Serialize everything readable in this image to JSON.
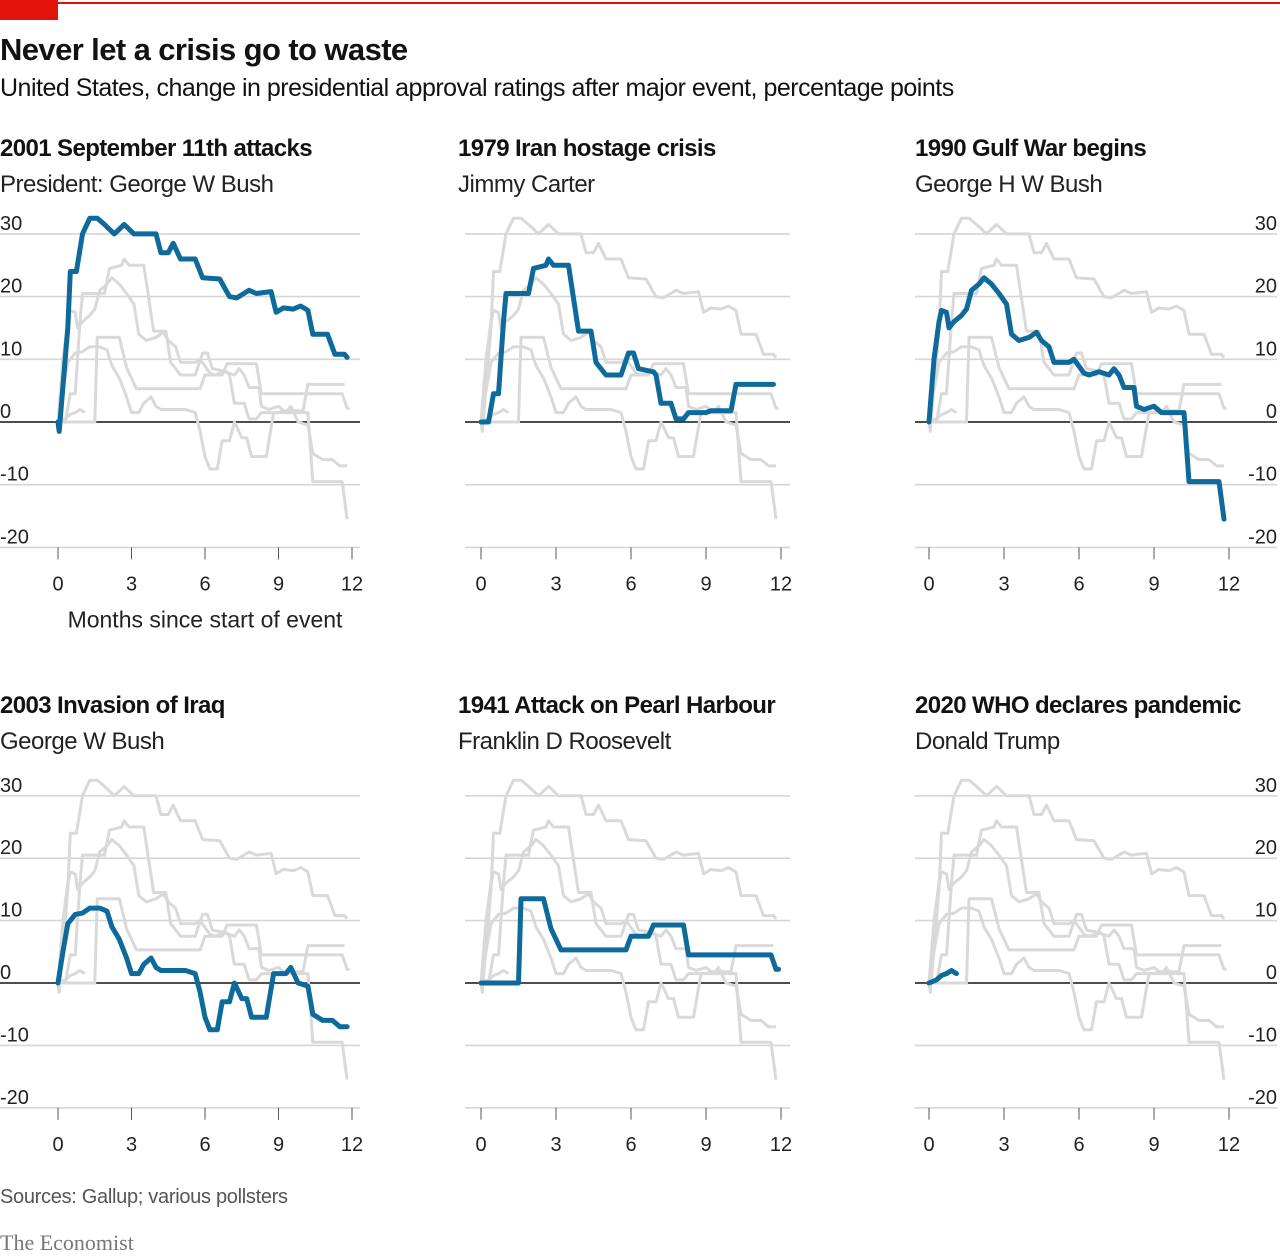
{
  "header": {
    "title": "Never let a crisis go to waste",
    "subtitle": "United States, change in presidential approval ratings after major event, percentage points"
  },
  "footer": {
    "source": "Sources: Gallup; various pollsters",
    "logo": "The Economist"
  },
  "colors": {
    "highlight": "#0e6a9a",
    "context": "#d9d9d9",
    "grid": "#d6d6d6",
    "zero": "#121212",
    "brand": "#e3120b"
  },
  "chart_data": {
    "type": "line",
    "xlabel": "Months since start of event",
    "ylabel": "percentage points",
    "xlim": [
      0,
      12
    ],
    "ylim": [
      -20,
      30
    ],
    "xticks": [
      0,
      3,
      6,
      9,
      12
    ],
    "yticks": [
      30,
      20,
      10,
      0,
      -10,
      -20
    ],
    "grid": true,
    "panels": [
      {
        "title": "2001 September 11th attacks",
        "president": "President: George W Bush",
        "highlight": 0
      },
      {
        "title": "1979 Iran hostage crisis",
        "president": "Jimmy Carter",
        "highlight": 1
      },
      {
        "title": "1990 Gulf War begins",
        "president": "George H W Bush",
        "highlight": 2
      },
      {
        "title": "2003 Invasion of Iraq",
        "president": "George W Bush",
        "highlight": 3
      },
      {
        "title": "1941 Attack on Pearl Harbour",
        "president": "Franklin D Roosevelt",
        "highlight": 4
      },
      {
        "title": "2020 WHO declares pandemic",
        "president": "Donald Trump",
        "highlight": 5
      }
    ],
    "series": [
      {
        "name": "2001 September 11th attacks",
        "x": [
          0,
          0.05,
          0.4,
          0.5,
          0.75,
          1,
          1.3,
          1.6,
          1.9,
          2.3,
          2.7,
          3.1,
          3.5,
          4,
          4.2,
          4.5,
          4.7,
          5,
          5.6,
          5.9,
          6.6,
          7,
          7.3,
          7.8,
          8.1,
          8.7,
          8.9,
          9.2,
          9.6,
          9.9,
          10.2,
          10.4,
          11,
          11.3,
          11.7,
          11.8
        ],
        "y": [
          0,
          -1.5,
          15,
          24,
          24,
          30,
          32.5,
          32.5,
          31.5,
          30,
          31.5,
          30,
          30,
          30,
          27,
          27,
          28.5,
          26,
          26,
          23,
          22.8,
          20,
          19.8,
          21,
          20.5,
          20.8,
          17.5,
          18.2,
          18,
          18.5,
          17.8,
          14,
          14,
          10.8,
          10.8,
          10.3
        ]
      },
      {
        "name": "1979 Iran hostage crisis",
        "x": [
          0,
          0.3,
          0.5,
          0.7,
          0.9,
          1,
          1.9,
          2.1,
          2.6,
          2.7,
          2.9,
          3.5,
          3.9,
          4.4,
          4.6,
          5,
          5.6,
          5.9,
          6.1,
          6.3,
          6.9,
          7,
          7.2,
          7.6,
          7.8,
          8.1,
          8.3,
          9,
          9.2,
          10,
          10.2,
          11.7
        ],
        "y": [
          0,
          0,
          4.5,
          4.5,
          16,
          20.5,
          20.5,
          24.5,
          25,
          26,
          25,
          25,
          14.5,
          14.5,
          9.5,
          7.5,
          7.5,
          11,
          11,
          8.5,
          8,
          7.5,
          3,
          3,
          0.5,
          0.5,
          1.5,
          1.5,
          1.8,
          1.8,
          6,
          6
        ]
      },
      {
        "name": "1990 Gulf War begins",
        "x": [
          0,
          0.2,
          0.4,
          0.5,
          0.7,
          0.8,
          1,
          1.3,
          1.5,
          1.7,
          2,
          2.2,
          2.5,
          2.8,
          3.1,
          3.3,
          3.6,
          4,
          4.3,
          4.5,
          4.8,
          5,
          5.6,
          5.8,
          6.2,
          6.4,
          6.8,
          7.2,
          7.4,
          7.6,
          7.8,
          8.2,
          8.3,
          8.6,
          9,
          9.3,
          10.2,
          10.4,
          11.6,
          11.8
        ],
        "y": [
          0,
          10,
          16,
          17.8,
          17.5,
          15,
          16,
          17,
          18,
          21,
          22,
          23,
          22,
          20.5,
          18.8,
          14,
          13,
          13.5,
          14.3,
          13,
          12,
          9.5,
          9.5,
          10,
          7.8,
          7.5,
          8,
          7.5,
          8.5,
          7.5,
          5.5,
          5.5,
          2.5,
          2,
          2.5,
          1.5,
          1.5,
          -9.5,
          -9.5,
          -15.5
        ]
      },
      {
        "name": "2003 Invasion of Iraq",
        "x": [
          0,
          0.2,
          0.4,
          0.7,
          1,
          1.3,
          1.7,
          2,
          2.2,
          2.5,
          2.8,
          3,
          3.3,
          3.5,
          3.8,
          4,
          4.2,
          5.2,
          5.6,
          5.8,
          6,
          6.2,
          6.5,
          6.7,
          7,
          7.2,
          7.5,
          7.7,
          7.9,
          8.5,
          8.8,
          9.3,
          9.5,
          9.8,
          10.2,
          10.4,
          10.8,
          11.2,
          11.5,
          11.8
        ],
        "y": [
          0,
          5,
          9.5,
          11,
          11.2,
          12,
          12,
          11.5,
          9,
          7,
          4,
          1.5,
          1.5,
          3,
          4,
          2.5,
          2,
          2,
          1.5,
          -1.5,
          -5.5,
          -7.5,
          -7.5,
          -3,
          -3,
          0,
          -2.5,
          -2.5,
          -5.5,
          -5.5,
          1.5,
          1.5,
          2.5,
          0,
          -0.5,
          -5,
          -6,
          -6,
          -7,
          -7
        ]
      },
      {
        "name": "1941 Attack on Pearl Harbour",
        "x": [
          0,
          1.5,
          1.6,
          2.5,
          2.8,
          3.2,
          5.8,
          6,
          6.7,
          6.9,
          8.1,
          8.3,
          11.6,
          11.8,
          11.9
        ],
        "y": [
          0,
          0,
          13.5,
          13.5,
          8.7,
          5.3,
          5.3,
          7.5,
          7.5,
          9.3,
          9.3,
          4.5,
          4.5,
          2.2,
          2.2
        ]
      },
      {
        "name": "2020 WHO declares pandemic",
        "x": [
          0,
          0.3,
          0.5,
          0.7,
          0.9,
          1.1
        ],
        "y": [
          0,
          0.5,
          1.2,
          1.5,
          2,
          1.5
        ]
      }
    ]
  }
}
